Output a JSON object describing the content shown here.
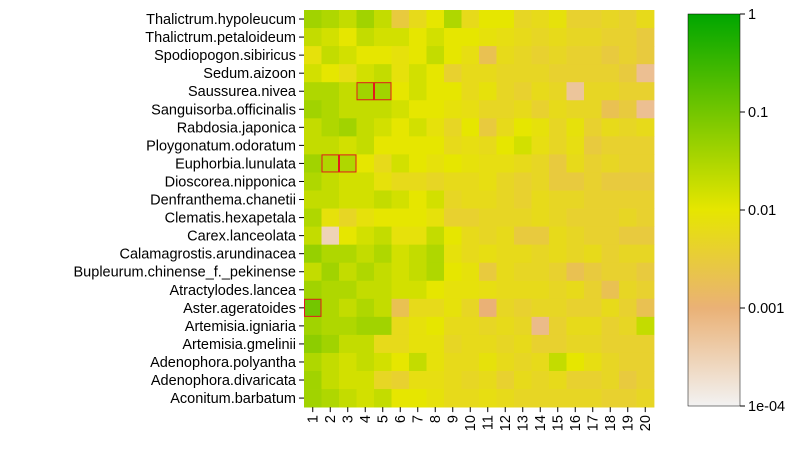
{
  "chart_data": {
    "type": "heatmap",
    "rows": [
      "Thalictrum.hypoleucum",
      "Thalictrum.petaloideum",
      "Spodiopogon.sibiricus",
      "Sedum.aizoon",
      "Saussurea.nivea",
      "Sanguisorba.officinalis",
      "Rabdosia.japonica",
      "Ploygonatum.odoratum",
      "Euphorbia.lunulata",
      "Dioscorea.nipponica",
      "Denfranthema.chanetii",
      "Clematis.hexapetala",
      "Carex.lanceolata",
      "Calamagrostis.arundinacea",
      "Bupleurum.chinense_f._pekinense",
      "Atractylodes.lancea",
      "Aster.ageratoides",
      "Artemisia.igniaria",
      "Artemisia.gmelinii",
      "Adenophora.polyantha",
      "Adenophora.divaricata",
      "Aconitum.barbatum"
    ],
    "columns": [
      "1",
      "2",
      "3",
      "4",
      "5",
      "6",
      "7",
      "8",
      "9",
      "10",
      "11",
      "12",
      "13",
      "14",
      "15",
      "16",
      "17",
      "18",
      "19",
      "20"
    ],
    "values": [
      [
        0.04,
        0.03,
        0.02,
        0.04,
        0.02,
        0.003,
        0.006,
        0.01,
        0.03,
        0.006,
        0.01,
        0.01,
        0.005,
        0.006,
        0.008,
        0.004,
        0.004,
        0.005,
        0.004,
        0.006
      ],
      [
        0.02,
        0.015,
        0.01,
        0.02,
        0.015,
        0.015,
        0.01,
        0.015,
        0.01,
        0.01,
        0.008,
        0.007,
        0.006,
        0.005,
        0.006,
        0.005,
        0.005,
        0.004,
        0.004,
        0.003
      ],
      [
        0.008,
        0.02,
        0.015,
        0.01,
        0.01,
        0.008,
        0.01,
        0.02,
        0.01,
        0.007,
        0.002,
        0.006,
        0.005,
        0.004,
        0.005,
        0.004,
        0.004,
        0.003,
        0.004,
        0.003
      ],
      [
        0.015,
        0.01,
        0.007,
        0.015,
        0.02,
        0.008,
        0.015,
        0.01,
        0.004,
        0.006,
        0.006,
        0.005,
        0.005,
        0.005,
        0.004,
        0.004,
        0.004,
        0.004,
        0.003,
        0.0006
      ],
      [
        0.03,
        0.03,
        0.02,
        0.04,
        0.04,
        0.01,
        0.015,
        0.01,
        0.01,
        0.006,
        0.008,
        0.005,
        0.004,
        0.006,
        0.005,
        0.0005,
        0.005,
        0.005,
        0.004,
        0.004
      ],
      [
        0.04,
        0.03,
        0.02,
        0.02,
        0.02,
        0.015,
        0.01,
        0.01,
        0.008,
        0.007,
        0.005,
        0.005,
        0.006,
        0.004,
        0.006,
        0.005,
        0.005,
        0.002,
        0.003,
        0.0006
      ],
      [
        0.02,
        0.03,
        0.04,
        0.02,
        0.015,
        0.01,
        0.015,
        0.008,
        0.005,
        0.01,
        0.003,
        0.006,
        0.01,
        0.008,
        0.005,
        0.008,
        0.004,
        0.006,
        0.005,
        0.006
      ],
      [
        0.02,
        0.02,
        0.015,
        0.02,
        0.01,
        0.01,
        0.01,
        0.01,
        0.006,
        0.007,
        0.006,
        0.01,
        0.015,
        0.007,
        0.005,
        0.007,
        0.003,
        0.004,
        0.004,
        0.004
      ],
      [
        0.04,
        0.03,
        0.03,
        0.01,
        0.006,
        0.015,
        0.01,
        0.008,
        0.01,
        0.008,
        0.007,
        0.007,
        0.006,
        0.005,
        0.003,
        0.006,
        0.004,
        0.005,
        0.004,
        0.004
      ],
      [
        0.03,
        0.02,
        0.015,
        0.015,
        0.008,
        0.006,
        0.006,
        0.005,
        0.006,
        0.006,
        0.007,
        0.005,
        0.004,
        0.005,
        0.003,
        0.003,
        0.004,
        0.003,
        0.003,
        0.003
      ],
      [
        0.02,
        0.02,
        0.015,
        0.015,
        0.02,
        0.015,
        0.01,
        0.015,
        0.005,
        0.006,
        0.006,
        0.005,
        0.004,
        0.006,
        0.005,
        0.005,
        0.004,
        0.004,
        0.004,
        0.004
      ],
      [
        0.03,
        0.008,
        0.005,
        0.008,
        0.01,
        0.01,
        0.01,
        0.008,
        0.004,
        0.004,
        0.005,
        0.005,
        0.005,
        0.006,
        0.005,
        0.004,
        0.004,
        0.004,
        0.005,
        0.004
      ],
      [
        0.02,
        0.0003,
        0.01,
        0.015,
        0.02,
        0.008,
        0.008,
        0.02,
        0.01,
        0.006,
        0.005,
        0.006,
        0.003,
        0.003,
        0.006,
        0.005,
        0.004,
        0.004,
        0.003,
        0.003
      ],
      [
        0.05,
        0.03,
        0.03,
        0.02,
        0.03,
        0.015,
        0.02,
        0.03,
        0.008,
        0.006,
        0.007,
        0.006,
        0.006,
        0.005,
        0.006,
        0.005,
        0.006,
        0.004,
        0.005,
        0.005
      ],
      [
        0.02,
        0.04,
        0.02,
        0.03,
        0.02,
        0.015,
        0.02,
        0.03,
        0.01,
        0.008,
        0.003,
        0.006,
        0.005,
        0.005,
        0.004,
        0.002,
        0.003,
        0.004,
        0.004,
        0.003
      ],
      [
        0.04,
        0.03,
        0.03,
        0.02,
        0.02,
        0.015,
        0.015,
        0.01,
        0.008,
        0.008,
        0.007,
        0.006,
        0.006,
        0.006,
        0.005,
        0.006,
        0.004,
        0.002,
        0.005,
        0.004
      ],
      [
        0.1,
        0.03,
        0.02,
        0.03,
        0.02,
        0.002,
        0.006,
        0.006,
        0.008,
        0.005,
        0.001,
        0.005,
        0.004,
        0.005,
        0.005,
        0.004,
        0.004,
        0.006,
        0.004,
        0.002
      ],
      [
        0.04,
        0.03,
        0.03,
        0.04,
        0.04,
        0.006,
        0.008,
        0.01,
        0.006,
        0.006,
        0.005,
        0.006,
        0.005,
        0.0007,
        0.004,
        0.006,
        0.006,
        0.004,
        0.005,
        0.02
      ],
      [
        0.06,
        0.04,
        0.02,
        0.02,
        0.006,
        0.006,
        0.008,
        0.008,
        0.005,
        0.006,
        0.006,
        0.005,
        0.006,
        0.004,
        0.004,
        0.005,
        0.005,
        0.004,
        0.004,
        0.004
      ],
      [
        0.03,
        0.02,
        0.015,
        0.02,
        0.015,
        0.01,
        0.02,
        0.008,
        0.006,
        0.006,
        0.008,
        0.006,
        0.005,
        0.006,
        0.02,
        0.01,
        0.007,
        0.005,
        0.004,
        0.004
      ],
      [
        0.04,
        0.02,
        0.015,
        0.015,
        0.005,
        0.004,
        0.007,
        0.007,
        0.006,
        0.005,
        0.006,
        0.004,
        0.006,
        0.005,
        0.006,
        0.004,
        0.004,
        0.005,
        0.003,
        0.004
      ],
      [
        0.04,
        0.03,
        0.02,
        0.015,
        0.02,
        0.01,
        0.01,
        0.008,
        0.006,
        0.006,
        0.007,
        0.006,
        0.005,
        0.005,
        0.005,
        0.005,
        0.005,
        0.004,
        0.004,
        0.005
      ]
    ],
    "highlighted_cells": [
      {
        "row": "Saussurea.nivea",
        "column": "4"
      },
      {
        "row": "Saussurea.nivea",
        "column": "5"
      },
      {
        "row": "Euphorbia.lunulata",
        "column": "2"
      },
      {
        "row": "Euphorbia.lunulata",
        "column": "3"
      },
      {
        "row": "Aster.ageratoides",
        "column": "1"
      }
    ],
    "highlight_color": "#e31a1c",
    "colorbar": {
      "scale": "log",
      "range": [
        0.0001,
        1
      ],
      "ticks": [
        "1e-04",
        "0.001",
        "0.01",
        "0.1",
        "1"
      ],
      "tick_values": [
        0.0001,
        0.001,
        0.01,
        0.1,
        1
      ],
      "colors": [
        {
          "value": 0.0001,
          "color": "#f2f2f2"
        },
        {
          "value": 0.001,
          "color": "#eab176"
        },
        {
          "value": 0.01,
          "color": "#e6e600"
        },
        {
          "value": 1,
          "color": "#00a600"
        }
      ]
    },
    "title": "",
    "xlabel": "",
    "ylabel": ""
  }
}
